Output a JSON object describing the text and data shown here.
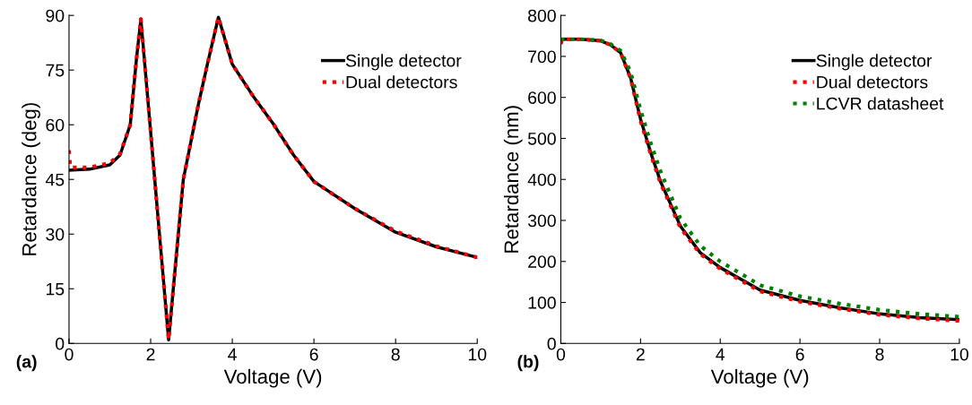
{
  "chart_data": [
    {
      "type": "line",
      "xlabel": "Voltage (V)",
      "ylabel": "Retardance (deg)",
      "xlim": [
        0,
        10
      ],
      "ylim": [
        0,
        90
      ],
      "xticks": [
        0,
        2,
        4,
        6,
        8,
        10
      ],
      "yticks": [
        0,
        15,
        30,
        45,
        60,
        75,
        90
      ],
      "legend": "top right",
      "grid": false,
      "annotations": [
        "(a)"
      ],
      "series": [
        {
          "name": "Single detector",
          "color": "#000000",
          "line_style": "solid",
          "x": [
            0,
            0.5,
            1,
            1.25,
            1.5,
            1.65,
            1.76,
            2.0,
            2.2,
            2.44,
            2.8,
            3.17,
            3.39,
            3.66,
            4.0,
            4.5,
            5.0,
            5.5,
            6.0,
            7.0,
            8.0,
            9.0,
            10.0
          ],
          "values": [
            47.5,
            47.8,
            49,
            51.7,
            60,
            77.8,
            89,
            58,
            32,
            1,
            45,
            65.6,
            76.6,
            89.5,
            76.6,
            68,
            60.3,
            51.7,
            44.4,
            37,
            30.5,
            26.5,
            23.6
          ]
        },
        {
          "name": "Dual detectors",
          "color": "#ff0000",
          "line_style": "dotted",
          "x": [
            0,
            0.03,
            0.5,
            1,
            1.25,
            1.5,
            1.65,
            1.76,
            2.0,
            2.2,
            2.44,
            2.8,
            3.17,
            3.39,
            3.66,
            4.0,
            4.5,
            5.0,
            5.5,
            6.0,
            7.0,
            8.0,
            9.0,
            10.0
          ],
          "values": [
            53,
            48.3,
            48.3,
            49.5,
            52,
            60,
            77.8,
            89,
            58,
            32,
            1,
            45,
            65.6,
            76.6,
            89.5,
            76.6,
            68,
            60.3,
            51.7,
            44.4,
            37,
            30.8,
            26.7,
            23.6
          ]
        }
      ]
    },
    {
      "type": "line",
      "xlabel": "Voltage (V)",
      "ylabel": "Retardance (nm)",
      "xlim": [
        0,
        10
      ],
      "ylim": [
        0,
        800
      ],
      "xticks": [
        0,
        2,
        4,
        6,
        8,
        10
      ],
      "yticks": [
        0,
        100,
        200,
        300,
        400,
        500,
        600,
        700,
        800
      ],
      "legend": "top right",
      "grid": false,
      "annotations": [
        "(b)"
      ],
      "series": [
        {
          "name": "Single detector",
          "color": "#000000",
          "line_style": "solid",
          "x": [
            0,
            0.5,
            1.0,
            1.25,
            1.5,
            1.75,
            2.0,
            2.25,
            2.5,
            3.0,
            3.5,
            4.0,
            5.0,
            6.0,
            7.0,
            8.0,
            9.0,
            10.0
          ],
          "values": [
            742,
            742,
            738,
            728,
            709,
            648,
            547,
            467,
            395,
            286,
            221,
            185,
            130,
            105,
            87,
            72,
            63,
            58
          ]
        },
        {
          "name": "Dual detectors",
          "color": "#ff0000",
          "line_style": "dotted",
          "x": [
            0,
            0.03,
            0.5,
            1.0,
            1.25,
            1.5,
            1.75,
            2.0,
            2.25,
            2.5,
            3.0,
            3.5,
            4.0,
            5.0,
            6.0,
            7.0,
            8.0,
            9.0,
            10.0
          ],
          "values": [
            730,
            742,
            742,
            738,
            728,
            709,
            646,
            543,
            463,
            391,
            282,
            218,
            182,
            127,
            102,
            85,
            70,
            61,
            55
          ]
        },
        {
          "name": "LCVR datasheet",
          "color": "#008000",
          "line_style": "dotted",
          "x": [
            0,
            0.5,
            1.0,
            1.25,
            1.5,
            1.75,
            2.0,
            2.25,
            2.5,
            3.0,
            3.5,
            4.0,
            5.0,
            6.0,
            7.0,
            8.0,
            9.0,
            10.0
          ],
          "values": [
            742,
            742,
            739,
            730,
            714,
            662,
            570,
            490,
            420,
            305,
            238,
            200,
            142,
            115,
            97,
            82,
            72,
            65
          ]
        }
      ]
    }
  ]
}
